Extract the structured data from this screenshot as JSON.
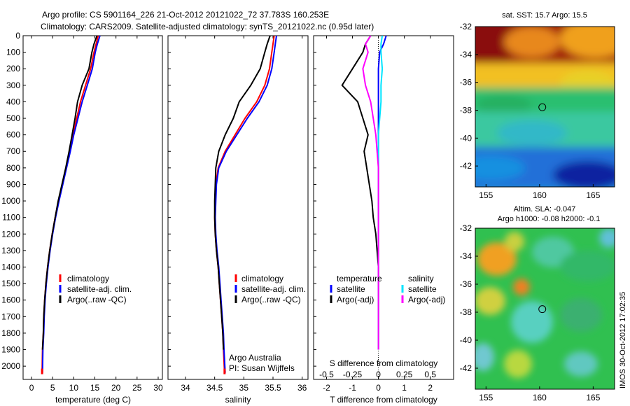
{
  "header": {
    "line1": "Argo profile: CS 5901164_226 21-Oct-2012 20121022_72 37.783S 160.253E",
    "line2": "Climatology: CARS2009. Satellite-adjusted climatology: synTS_20121022.nc (0.95d later)"
  },
  "colors": {
    "climatology": "#ff0000",
    "satellite": "#0000ff",
    "argo": "#000000",
    "salinity_satellite": "#00e5ff",
    "salinity_argo": "#ff00ff"
  },
  "chart_data": [
    {
      "type": "line",
      "id": "temperature",
      "xlabel": "temperature (deg C)",
      "ylabel": "",
      "xlim": [
        -2,
        31
      ],
      "ylim": [
        2080,
        0
      ],
      "xticks": [
        "0",
        "5",
        "10",
        "15",
        "20",
        "25",
        "30"
      ],
      "xtick_values": [
        0,
        5,
        10,
        15,
        20,
        25,
        30
      ],
      "yticks": [
        "0",
        "100",
        "200",
        "300",
        "400",
        "500",
        "600",
        "700",
        "800",
        "900",
        "1000",
        "1100",
        "1200",
        "1300",
        "1400",
        "1500",
        "1600",
        "1700",
        "1800",
        "1900",
        "2000"
      ],
      "ytick_values": [
        0,
        100,
        200,
        300,
        400,
        500,
        600,
        700,
        800,
        900,
        1000,
        1100,
        1200,
        1300,
        1400,
        1500,
        1600,
        1700,
        1800,
        1900,
        2000
      ],
      "legend": [
        "climatology",
        "satellite-adj. clim.",
        "Argo(..raw -QC)"
      ],
      "legend_position": "lower-center",
      "series": [
        {
          "name": "climatology",
          "color": "#ff0000",
          "x": [
            15.8,
            15.3,
            14.8,
            14.0,
            12.8,
            11.6,
            10.7,
            9.8,
            9.0,
            8.2,
            7.3,
            6.4,
            5.6,
            4.9,
            4.3,
            3.8,
            3.4,
            3.1,
            2.9,
            2.8,
            2.6,
            2.5
          ],
          "y": [
            0,
            50,
            100,
            200,
            300,
            400,
            500,
            600,
            700,
            800,
            900,
            1000,
            1100,
            1200,
            1300,
            1400,
            1500,
            1600,
            1700,
            1800,
            1900,
            2040
          ]
        },
        {
          "name": "satellite-adj. clim.",
          "color": "#0000ff",
          "x": [
            16.2,
            15.6,
            15.1,
            14.4,
            13.2,
            12.0,
            11.0,
            10.0,
            9.2,
            8.3,
            7.4,
            6.5,
            5.7,
            5.0,
            4.4,
            3.9,
            3.5,
            3.2,
            3.0,
            2.9,
            2.7,
            2.6
          ],
          "y": [
            0,
            50,
            100,
            200,
            300,
            400,
            500,
            600,
            700,
            800,
            900,
            1000,
            1100,
            1200,
            1300,
            1400,
            1500,
            1600,
            1700,
            1800,
            1900,
            2040
          ]
        },
        {
          "name": "Argo(..raw -QC)",
          "color": "#000000",
          "x": [
            15.5,
            14.8,
            14.3,
            13.6,
            12.0,
            10.9,
            10.3,
            9.6,
            8.9,
            8.1,
            7.2,
            6.3,
            5.6,
            4.9,
            4.3,
            3.8,
            3.4,
            3.1,
            2.9,
            2.8,
            2.6
          ],
          "y": [
            0,
            50,
            100,
            200,
            300,
            400,
            500,
            600,
            700,
            800,
            900,
            1000,
            1100,
            1200,
            1300,
            1400,
            1500,
            1600,
            1700,
            1800,
            1900
          ]
        }
      ]
    },
    {
      "type": "line",
      "id": "salinity",
      "xlabel": "salinity",
      "xlim": [
        33.7,
        36.1
      ],
      "ylim": [
        2080,
        0
      ],
      "xticks": [
        "34",
        "34.5",
        "35",
        "35.5",
        "36"
      ],
      "xtick_values": [
        34,
        34.5,
        35,
        35.5,
        36
      ],
      "legend": [
        "climatology",
        "satellite-adj. clim.",
        "Argo(..raw -QC)"
      ],
      "legend_position": "lower-right",
      "annotation": [
        "Argo Australia",
        "PI: Susan Wijffels"
      ],
      "series": [
        {
          "name": "climatology",
          "color": "#ff0000",
          "x": [
            35.52,
            35.5,
            35.48,
            35.44,
            35.36,
            35.22,
            35.02,
            34.85,
            34.68,
            34.56,
            34.52,
            34.51,
            34.5,
            34.51,
            34.53,
            34.56,
            34.58,
            34.6,
            34.62,
            34.64,
            34.65,
            34.67
          ],
          "y": [
            0,
            50,
            100,
            200,
            300,
            400,
            500,
            600,
            700,
            800,
            900,
            1000,
            1100,
            1200,
            1300,
            1400,
            1500,
            1600,
            1700,
            1800,
            1900,
            2040
          ]
        },
        {
          "name": "satellite-adj. clim.",
          "color": "#0000ff",
          "x": [
            35.56,
            35.54,
            35.52,
            35.48,
            35.4,
            35.26,
            35.06,
            34.88,
            34.7,
            34.57,
            34.53,
            34.52,
            34.51,
            34.52,
            34.54,
            34.57,
            34.59,
            34.61,
            34.63,
            34.65,
            34.66,
            34.68
          ],
          "y": [
            0,
            50,
            100,
            200,
            300,
            400,
            500,
            600,
            700,
            800,
            900,
            1000,
            1100,
            1200,
            1300,
            1400,
            1500,
            1600,
            1700,
            1800,
            1900,
            2040
          ]
        },
        {
          "name": "Argo(..raw -QC)",
          "color": "#000000",
          "x": [
            35.45,
            35.4,
            35.36,
            35.28,
            35.12,
            34.92,
            34.82,
            34.68,
            34.57,
            34.52,
            34.51,
            34.5,
            34.5,
            34.51,
            34.53,
            34.56,
            34.58,
            34.6,
            34.62,
            34.64,
            34.65
          ],
          "y": [
            0,
            50,
            100,
            200,
            300,
            400,
            500,
            600,
            700,
            800,
            900,
            1000,
            1100,
            1200,
            1300,
            1400,
            1500,
            1600,
            1700,
            1800,
            1900
          ]
        }
      ]
    },
    {
      "type": "line",
      "id": "difference",
      "xlabel": "T difference from climatology",
      "xlabel_top": "S difference from climatology",
      "xlim": [
        -2.5,
        2.9
      ],
      "ylim": [
        2080,
        0
      ],
      "xticks": [
        "-2",
        "-1",
        "0",
        "1",
        "2"
      ],
      "xtick_values": [
        -2,
        -1,
        0,
        1,
        2
      ],
      "xticks_top": [
        "-0.5",
        "-0.25",
        "0",
        "0.25",
        "0.5"
      ],
      "xtick_top_values": [
        -2,
        -1,
        0,
        1,
        2
      ],
      "legend_temperature": {
        "title": "temperature",
        "items": [
          "satellite",
          "Argo(-adj)"
        ]
      },
      "legend_salinity": {
        "title": "salinity",
        "items": [
          "satellite",
          "Argo(-adj)"
        ]
      },
      "series": [
        {
          "name": "satellite",
          "group": "temperature",
          "color": "#0000ff",
          "x": [
            0.3,
            0.2,
            0.05,
            0.0,
            0.0,
            0.0,
            0.0,
            0.0,
            0.0,
            0.0,
            0.0,
            0.0,
            0.0,
            0.0,
            0.0,
            0.0,
            0.0,
            0.0,
            0.0,
            0.0,
            0.0
          ],
          "y": [
            0,
            50,
            100,
            200,
            300,
            400,
            500,
            600,
            700,
            800,
            900,
            1000,
            1100,
            1200,
            1300,
            1400,
            1500,
            1600,
            1700,
            1800,
            1900
          ]
        },
        {
          "name": "Argo(-adj)",
          "group": "temperature",
          "color": "#000000",
          "x": [
            -0.3,
            -0.5,
            -0.6,
            -1.0,
            -1.4,
            -0.8,
            -0.6,
            -0.4,
            -0.55,
            -0.45,
            -0.35,
            -0.25,
            -0.2,
            -0.1,
            -0.05,
            0.0,
            0.0,
            0.0,
            0.0,
            0.0,
            0.0
          ],
          "y": [
            0,
            50,
            100,
            200,
            300,
            400,
            500,
            600,
            700,
            800,
            900,
            1000,
            1100,
            1200,
            1300,
            1400,
            1500,
            1600,
            1700,
            1800,
            1900
          ]
        },
        {
          "name": "satellite",
          "group": "salinity",
          "color": "#00e5ff",
          "x": [
            0.15,
            0.1,
            0.1,
            0.15,
            0.1,
            0.1,
            0.05,
            0.0,
            0.0,
            0.0,
            0.0,
            0.0,
            0.0,
            0.0,
            0.0,
            0.0,
            0.0,
            0.0,
            0.0,
            0.0,
            0.0
          ],
          "y": [
            0,
            50,
            100,
            200,
            300,
            400,
            500,
            600,
            700,
            800,
            900,
            1000,
            1100,
            1200,
            1300,
            1400,
            1500,
            1600,
            1700,
            1800,
            1900
          ]
        },
        {
          "name": "Argo(-adj)",
          "group": "salinity",
          "color": "#ff00ff",
          "x": [
            -0.3,
            -0.5,
            -0.4,
            -0.6,
            -0.5,
            -0.3,
            -0.2,
            -0.1,
            -0.05,
            0.0,
            0.0,
            0.0,
            0.0,
            0.0,
            0.0,
            0.0,
            0.0,
            0.0,
            0.0,
            0.0,
            0.0
          ],
          "y": [
            0,
            50,
            100,
            200,
            300,
            400,
            500,
            600,
            700,
            800,
            900,
            1000,
            1100,
            1200,
            1300,
            1400,
            1500,
            1600,
            1700,
            1800,
            1900
          ]
        }
      ]
    },
    {
      "type": "heatmap",
      "id": "sst_map",
      "title": "sat. SST: 15.7 Argo: 15.5",
      "xlim": [
        154,
        167
      ],
      "ylim": [
        -43.5,
        -32
      ],
      "xticks": [
        "155",
        "160",
        "165"
      ],
      "xtick_values": [
        155,
        160,
        165
      ],
      "yticks": [
        "-32",
        "-34",
        "-36",
        "-38",
        "-40",
        "-42"
      ],
      "ytick_values": [
        -32,
        -34,
        -36,
        -38,
        -40,
        -42
      ],
      "marker": {
        "lon": 160.253,
        "lat": -37.783
      }
    },
    {
      "type": "heatmap",
      "id": "sla_map",
      "title": "Altim. SLA: -0.047",
      "subtitle": "Argo h1000: -0.08 h2000: -0.1",
      "xlim": [
        154,
        167
      ],
      "ylim": [
        -43.5,
        -32
      ],
      "xticks": [
        "155",
        "160",
        "165"
      ],
      "xtick_values": [
        155,
        160,
        165
      ],
      "yticks": [
        "-32",
        "-34",
        "-36",
        "-38",
        "-40",
        "-42"
      ],
      "ytick_values": [
        -32,
        -34,
        -36,
        -38,
        -40,
        -42
      ],
      "marker": {
        "lon": 160.253,
        "lat": -37.783
      }
    }
  ],
  "side_label": "IMOS 30-Oct-2012 17:02:35"
}
